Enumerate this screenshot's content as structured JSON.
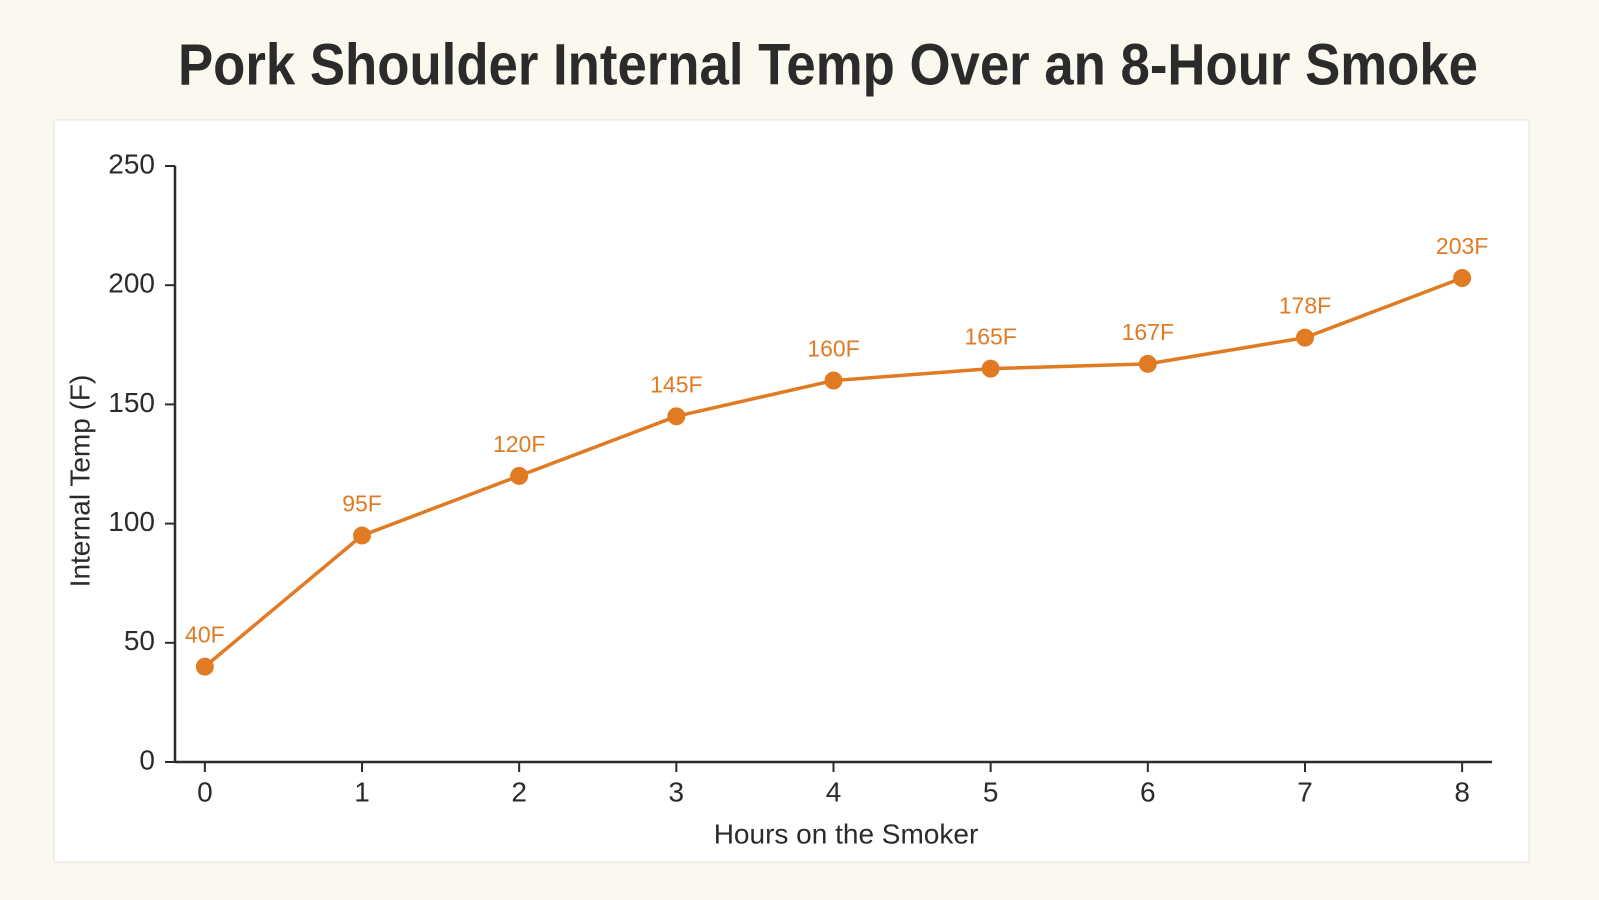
{
  "chart_data": {
    "type": "line",
    "title": "Pork Shoulder Internal Temp Over an 8-Hour Smoke",
    "x_label": "Hours on the Smoker",
    "y_label": "Internal Temp (F)",
    "x": [
      0,
      1,
      2,
      3,
      4,
      5,
      6,
      7,
      8
    ],
    "series": [
      {
        "name": "Internal Temp",
        "color": "#e07b24",
        "values": [
          40,
          95,
          120,
          145,
          160,
          165,
          167,
          178,
          203
        ],
        "value_labels": [
          "40F",
          "95F",
          "120F",
          "145F",
          "160F",
          "165F",
          "167F",
          "178F",
          "203F"
        ]
      }
    ],
    "xlim": [
      -0.19,
      8.19
    ],
    "xticks": [
      0,
      1,
      2,
      3,
      4,
      5,
      6,
      7,
      8
    ],
    "ylim": [
      0,
      250
    ],
    "yticks": [
      0,
      50,
      100,
      150,
      200,
      250
    ],
    "grid": false
  }
}
